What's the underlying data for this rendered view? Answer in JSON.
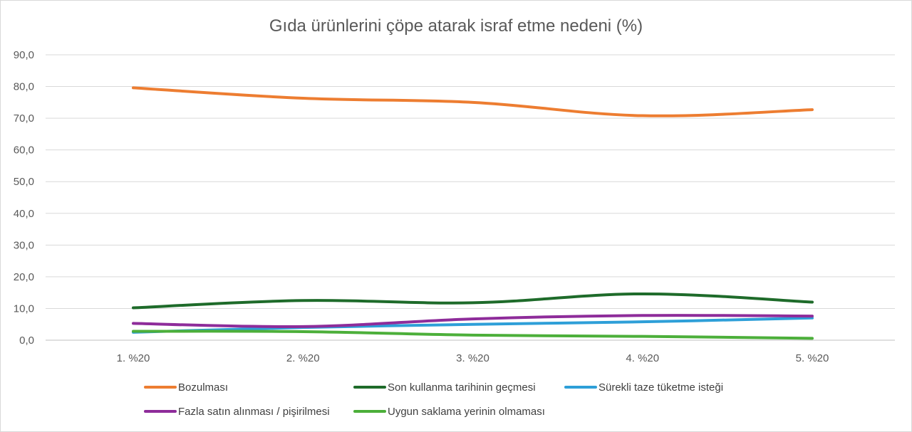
{
  "chart_data": {
    "type": "line",
    "title": "Gıda ürünlerini çöpe atarak israf etme nedeni (%)",
    "categories": [
      "1. %20",
      "2. %20",
      "3. %20",
      "4. %20",
      "5. %20"
    ],
    "y_ticks": [
      "0,0",
      "10,0",
      "20,0",
      "30,0",
      "40,0",
      "50,0",
      "60,0",
      "70,0",
      "80,0",
      "90,0"
    ],
    "ylim": [
      0,
      90
    ],
    "grid": true,
    "legend_position": "bottom",
    "series": [
      {
        "name": "Bozulması",
        "color": "#ED7D31",
        "values": [
          79.6,
          76.3,
          75.0,
          70.8,
          72.7
        ]
      },
      {
        "name": "Son kullanma tarihinin geçmesi",
        "color": "#1E6B2A",
        "values": [
          10.2,
          12.5,
          11.8,
          14.6,
          12.0
        ]
      },
      {
        "name": "Sürekli taze tüketme isteği",
        "color": "#2E9FD8",
        "values": [
          2.5,
          4.0,
          5.0,
          5.8,
          7.0
        ]
      },
      {
        "name": "Fazla satın alınması / pişirilmesi",
        "color": "#8E2C9A",
        "values": [
          5.3,
          4.3,
          6.7,
          7.8,
          7.6
        ]
      },
      {
        "name": "Uygun saklama yerinin olmaması",
        "color": "#4CAF3A",
        "values": [
          2.8,
          2.7,
          1.6,
          1.2,
          0.6
        ]
      }
    ]
  }
}
